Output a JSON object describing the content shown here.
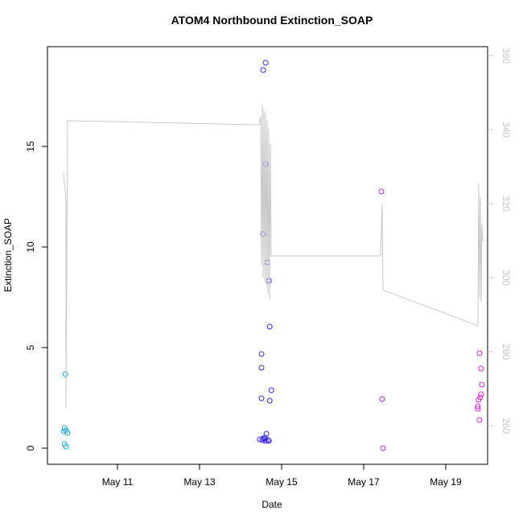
{
  "chart_data": {
    "type": "scatter",
    "title": "ATOM4 Northbound Extinction_SOAP",
    "x_label": "Date",
    "y_label": "Extinction_SOAP",
    "xlim": [
      9.294,
      20.02
    ],
    "xticks": [
      {
        "value": 11,
        "label": "May 11"
      },
      {
        "value": 13,
        "label": "May 13"
      },
      {
        "value": 15,
        "label": "May 15"
      },
      {
        "value": 17,
        "label": "May 17"
      },
      {
        "value": 19,
        "label": "May 19"
      }
    ],
    "ylim": [
      -0.8,
      19.96
    ],
    "yticks": [
      0,
      5,
      10,
      15
    ],
    "y2lim": [
      249.6,
      362.4
    ],
    "y2ticks": [
      260,
      280,
      300,
      320,
      340,
      360
    ],
    "y2_color": "#c8c8c8",
    "series": [
      {
        "type": "scatter",
        "x": [
          9.73,
          9.71,
          9.745,
          9.69,
          9.78,
          9.71,
          9.745,
          14.61,
          14.55,
          14.61,
          14.55,
          14.65,
          14.69,
          14.71,
          14.51,
          14.51,
          14.75,
          14.51,
          14.71,
          14.63,
          14.47,
          14.55,
          14.59,
          14.53,
          14.61,
          14.67,
          14.59,
          14.69,
          17.43,
          17.45,
          17.47,
          19.82,
          19.86,
          19.88,
          19.86,
          19.84,
          19.8,
          19.78,
          19.78,
          19.82
        ],
        "values": [
          3.68,
          1.0,
          0.88,
          0.84,
          0.76,
          0.2,
          0.08,
          19.16,
          18.8,
          14.12,
          10.64,
          9.24,
          8.32,
          6.04,
          4.68,
          4.0,
          2.88,
          2.48,
          2.36,
          0.72,
          0.44,
          0.48,
          0.52,
          0.4,
          0.36,
          0.4,
          0.44,
          0.36,
          12.76,
          2.44,
          0.0,
          4.72,
          3.96,
          3.16,
          2.68,
          2.52,
          2.4,
          2.08,
          1.96,
          1.4
        ],
        "colors": [
          "#22aee8",
          "#22aee8",
          "#22aee8",
          "#22aee8",
          "#22aee8",
          "#22aee8",
          "#22aee8",
          "#3a2af5",
          "#3a2af5",
          "#3a2af5",
          "#3a2af5",
          "#3a2af5",
          "#3a2af5",
          "#3a2af5",
          "#3a2af5",
          "#3a2af5",
          "#3a2af5",
          "#3a2af5",
          "#3a2af5",
          "#3a2af5",
          "#3a2af5",
          "#3a2af5",
          "#3a2af5",
          "#3a2af5",
          "#3a2af5",
          "#3a2af5",
          "#3a2af5",
          "#3a2af5",
          "#b22ae8",
          "#b22ae8",
          "#b22ae8",
          "#e026d8",
          "#e026d8",
          "#e026d8",
          "#e026d8",
          "#e026d8",
          "#e026d8",
          "#e026d8",
          "#e026d8",
          "#e026d8"
        ]
      },
      {
        "type": "line",
        "axis": "y2",
        "color": "#c8c8c8",
        "x": [
          9.686,
          9.745,
          9.745,
          9.784,
          14.451,
          14.49,
          14.51,
          14.53,
          14.55,
          14.569,
          14.588,
          14.608,
          14.627,
          14.647,
          14.667,
          14.686,
          14.706,
          14.725,
          14.745,
          14.765,
          17.412,
          17.451,
          17.471,
          19.784,
          19.804,
          19.824,
          19.843,
          19.863,
          19.882,
          19.902
        ],
        "values": [
          328.3,
          320.7,
          264.6,
          342.4,
          341.3,
          343.5,
          303.3,
          346.7,
          300,
          345.4,
          298.9,
          344.6,
          297.8,
          342.4,
          295.7,
          340.2,
          294.1,
          336.3,
          305.9,
          305.9,
          305.9,
          320,
          296.7,
          287,
          325.4,
          294.6,
          321.7,
          293.5,
          314.6,
          309.8
        ]
      }
    ]
  }
}
